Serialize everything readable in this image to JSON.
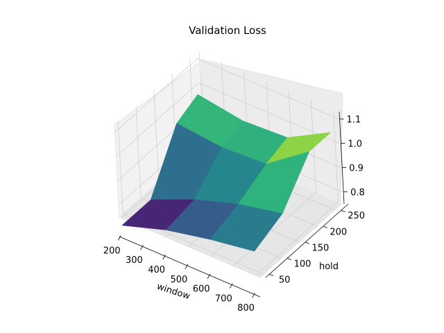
{
  "chart_data": {
    "type": "surface3d",
    "title": "Validation Loss",
    "xlabel": "window",
    "ylabel": "hold",
    "zlabel": "",
    "x_ticks": [
      "200",
      "300",
      "400",
      "500",
      "600",
      "700",
      "800"
    ],
    "y_ticks": [
      "50",
      "100",
      "150",
      "200",
      "250"
    ],
    "z_ticks": [
      "0.8",
      "0.9",
      "1.0",
      "1.1"
    ],
    "xlim": [
      190,
      820
    ],
    "ylim": [
      40,
      270
    ],
    "zlim": [
      0.75,
      1.13
    ],
    "colormap": "viridis",
    "grid": true,
    "surface": {
      "x": [
        200,
        400,
        600,
        800
      ],
      "y": [
        40,
        120,
        200,
        260
      ],
      "z": [
        [
          0.72,
          0.78,
          0.82,
          0.85
        ],
        [
          0.72,
          0.8,
          0.86,
          0.9
        ],
        [
          0.93,
          0.91,
          0.92,
          1.05
        ],
        [
          0.97,
          0.94,
          0.95,
          1.05
        ]
      ]
    }
  }
}
